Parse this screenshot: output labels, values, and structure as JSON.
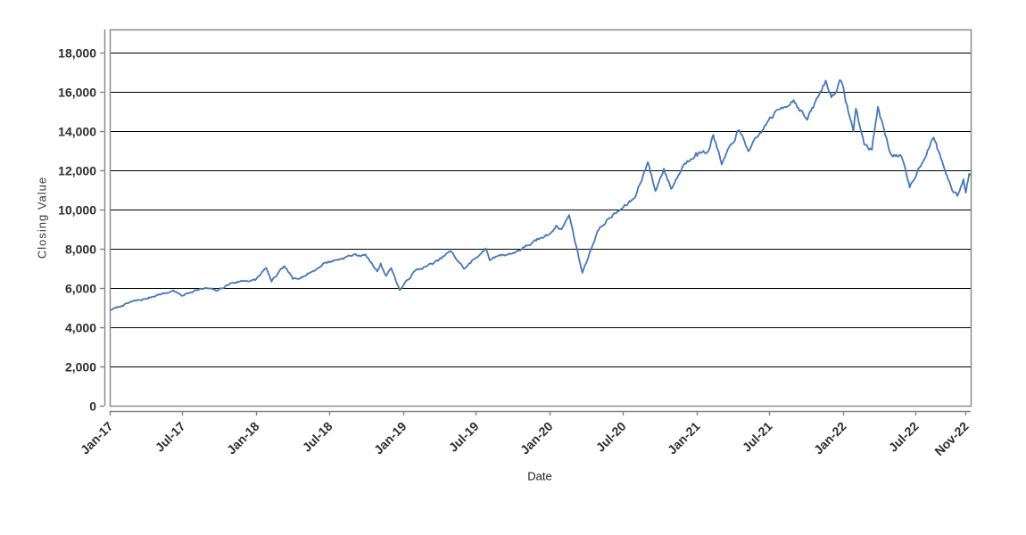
{
  "chart_data": {
    "type": "line",
    "title": "",
    "xlabel": "Date",
    "ylabel": "Closing Value",
    "legend": "none",
    "grid": "horizontal, black lines every 2000",
    "plot_frame_color": "#858585",
    "gridline_color": "#000000",
    "ylim": [
      0,
      19182
    ],
    "y_ticks": [
      0,
      2000,
      4000,
      6000,
      8000,
      10000,
      12000,
      14000,
      16000,
      18000
    ],
    "y_tick_labels": [
      "0",
      "2,000",
      "4,000",
      "6,000",
      "8,000",
      "10,000",
      "12,000",
      "14,000",
      "16,000",
      "18,000"
    ],
    "x_range": [
      "2017-01-01",
      "2022-11-15"
    ],
    "x_ticks": [
      {
        "date": "2017-01-01",
        "label": "Jan-17"
      },
      {
        "date": "2017-07-01",
        "label": "Jul-17"
      },
      {
        "date": "2018-01-01",
        "label": "Jan-18"
      },
      {
        "date": "2018-07-01",
        "label": "Jul-18"
      },
      {
        "date": "2019-01-01",
        "label": "Jan-19"
      },
      {
        "date": "2019-07-01",
        "label": "Jul-19"
      },
      {
        "date": "2020-01-01",
        "label": "Jan-20"
      },
      {
        "date": "2020-07-01",
        "label": "Jul-20"
      },
      {
        "date": "2021-01-01",
        "label": "Jan-21"
      },
      {
        "date": "2021-07-01",
        "label": "Jul-21"
      },
      {
        "date": "2022-01-01",
        "label": "Jan-22"
      },
      {
        "date": "2022-07-01",
        "label": "Jul-22"
      },
      {
        "date": "2022-11-01",
        "label": "Nov-22"
      }
    ],
    "series": [
      {
        "name": "Closing Value",
        "color": "#4677b8",
        "points": [
          [
            "2017-01-03",
            4880
          ],
          [
            "2017-01-31",
            5098
          ],
          [
            "2017-02-28",
            5324
          ],
          [
            "2017-03-31",
            5436
          ],
          [
            "2017-04-28",
            5647
          ],
          [
            "2017-05-31",
            5788
          ],
          [
            "2017-06-08",
            5885
          ],
          [
            "2017-06-29",
            5600
          ],
          [
            "2017-07-31",
            5880
          ],
          [
            "2017-08-31",
            5988
          ],
          [
            "2017-09-25",
            5860
          ],
          [
            "2017-10-31",
            6252
          ],
          [
            "2017-11-30",
            6364
          ],
          [
            "2017-12-29",
            6396
          ],
          [
            "2018-01-26",
            7022
          ],
          [
            "2018-02-08",
            6327
          ],
          [
            "2018-03-12",
            7112
          ],
          [
            "2018-04-02",
            6458
          ],
          [
            "2018-04-30",
            6614
          ],
          [
            "2018-05-31",
            6969
          ],
          [
            "2018-06-20",
            7281
          ],
          [
            "2018-07-25",
            7460
          ],
          [
            "2018-08-30",
            7691
          ],
          [
            "2018-10-01",
            7660
          ],
          [
            "2018-10-29",
            6847
          ],
          [
            "2018-11-07",
            7250
          ],
          [
            "2018-11-20",
            6617
          ],
          [
            "2018-12-03",
            7022
          ],
          [
            "2018-12-24",
            5895
          ],
          [
            "2019-01-31",
            6869
          ],
          [
            "2019-02-28",
            7101
          ],
          [
            "2019-03-29",
            7379
          ],
          [
            "2019-04-29",
            7881
          ],
          [
            "2019-06-03",
            6979
          ],
          [
            "2019-07-26",
            8017
          ],
          [
            "2019-08-05",
            7421
          ],
          [
            "2019-08-30",
            7691
          ],
          [
            "2019-09-30",
            7749
          ],
          [
            "2019-10-31",
            8083
          ],
          [
            "2019-11-29",
            8403
          ],
          [
            "2019-12-31",
            8733
          ],
          [
            "2020-01-17",
            9173
          ],
          [
            "2020-01-31",
            8991
          ],
          [
            "2020-02-19",
            9718
          ],
          [
            "2020-03-23",
            6771
          ],
          [
            "2020-04-30",
            8912
          ],
          [
            "2020-05-29",
            9556
          ],
          [
            "2020-06-30",
            10057
          ],
          [
            "2020-07-31",
            10587
          ],
          [
            "2020-09-02",
            12420
          ],
          [
            "2020-09-21",
            10936
          ],
          [
            "2020-10-12",
            12088
          ],
          [
            "2020-10-30",
            11052
          ],
          [
            "2020-11-30",
            12268
          ],
          [
            "2020-12-31",
            12888
          ],
          [
            "2021-01-29",
            12925
          ],
          [
            "2021-02-12",
            13807
          ],
          [
            "2021-03-05",
            12299
          ],
          [
            "2021-04-16",
            14041
          ],
          [
            "2021-05-12",
            13002
          ],
          [
            "2021-06-30",
            14554
          ],
          [
            "2021-07-26",
            15106
          ],
          [
            "2021-08-31",
            15582
          ],
          [
            "2021-10-04",
            14568
          ],
          [
            "2021-11-19",
            16573
          ],
          [
            "2021-12-03",
            15712
          ],
          [
            "2021-12-27",
            16567
          ],
          [
            "2022-01-27",
            13981
          ],
          [
            "2022-02-02",
            15140
          ],
          [
            "2022-02-23",
            13320
          ],
          [
            "2022-03-14",
            13046
          ],
          [
            "2022-03-29",
            15239
          ],
          [
            "2022-04-29",
            12855
          ],
          [
            "2022-05-27",
            12681
          ],
          [
            "2022-06-16",
            11127
          ],
          [
            "2022-08-15",
            13667
          ],
          [
            "2022-09-30",
            10971
          ],
          [
            "2022-10-13",
            10690
          ],
          [
            "2022-10-28",
            11546
          ],
          [
            "2022-11-03",
            10857
          ],
          [
            "2022-11-11",
            11817
          ],
          [
            "2022-11-15",
            11775
          ]
        ]
      }
    ]
  }
}
